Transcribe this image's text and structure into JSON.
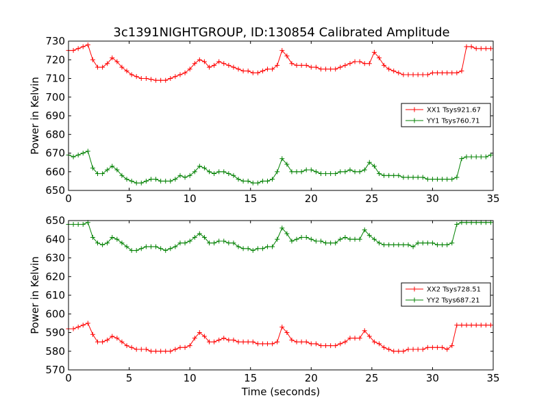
{
  "chart_data": [
    {
      "type": "line",
      "title": "3c1391NIGHTGROUP, ID:130854 Calibrated Amplitude",
      "xlabel": "",
      "ylabel": "Power in Kelvin",
      "xlim": [
        0,
        35
      ],
      "ylim": [
        650,
        730
      ],
      "xticks": [
        0,
        5,
        10,
        15,
        20,
        25,
        30,
        35
      ],
      "yticks": [
        650,
        660,
        670,
        680,
        690,
        700,
        710,
        720,
        730
      ],
      "grid": false,
      "legend_position": "right",
      "x": [
        0.0,
        0.4,
        0.8,
        1.2,
        1.6,
        2.0,
        2.4,
        2.8,
        3.2,
        3.6,
        4.0,
        4.4,
        4.8,
        5.2,
        5.6,
        6.0,
        6.4,
        6.8,
        7.2,
        7.6,
        8.0,
        8.4,
        8.8,
        9.2,
        9.6,
        10.0,
        10.4,
        10.8,
        11.2,
        11.6,
        12.0,
        12.4,
        12.8,
        13.2,
        13.6,
        14.0,
        14.4,
        14.8,
        15.2,
        15.6,
        16.0,
        16.4,
        16.8,
        17.2,
        17.6,
        18.0,
        18.4,
        18.8,
        19.2,
        19.6,
        20.0,
        20.4,
        20.8,
        21.2,
        21.6,
        22.0,
        22.4,
        22.8,
        23.2,
        23.6,
        24.0,
        24.4,
        24.8,
        25.2,
        25.6,
        26.0,
        26.4,
        26.8,
        27.2,
        27.6,
        28.0,
        28.4,
        28.8,
        29.2,
        29.6,
        30.0,
        30.4,
        30.8,
        31.2,
        31.6,
        32.0,
        32.4,
        32.8,
        33.2,
        33.6,
        34.0,
        34.4,
        34.8
      ],
      "series": [
        {
          "name": "XX1 Tsys921.67",
          "color": "#ff0000",
          "values": [
            725,
            725,
            726,
            727,
            728,
            720,
            716,
            716,
            718,
            721,
            719,
            716,
            714,
            712,
            711,
            710,
            710,
            709.5,
            709,
            709,
            709,
            710,
            711,
            712,
            713,
            715,
            718,
            720,
            719,
            716,
            717,
            719,
            718,
            717,
            716,
            715,
            714,
            714,
            713,
            713,
            714,
            715,
            715,
            717,
            725,
            722,
            718,
            717,
            717,
            717,
            716,
            716,
            715,
            715,
            715,
            715,
            716,
            717,
            718,
            719,
            719,
            718,
            718,
            724,
            721,
            717,
            715,
            714,
            713,
            712,
            712,
            712,
            712,
            712,
            712,
            713,
            713,
            713,
            713,
            713,
            713,
            714,
            727,
            727,
            726,
            726,
            726,
            726
          ]
        },
        {
          "name": "YY1 Tsys760.71",
          "color": "#008000",
          "values": [
            669,
            668,
            669,
            670,
            671,
            662,
            659,
            659,
            661,
            663,
            661,
            658,
            656,
            655,
            654,
            654,
            655,
            656,
            656,
            655,
            655,
            655,
            656,
            658,
            657,
            658,
            660,
            663,
            662,
            660,
            659,
            660,
            660,
            659,
            658,
            656,
            655,
            655,
            654,
            654,
            655,
            655,
            656,
            660,
            667,
            664,
            660,
            660,
            660,
            661,
            661,
            660,
            659,
            659,
            659,
            659,
            660,
            660,
            661,
            660,
            660,
            661,
            665,
            663,
            659,
            658,
            658,
            658,
            658,
            657,
            657,
            657,
            657,
            657,
            656,
            656,
            656,
            656,
            656,
            656,
            657,
            667,
            668,
            668,
            668,
            668,
            668,
            669
          ]
        }
      ]
    },
    {
      "type": "line",
      "title": "",
      "xlabel": "Time (seconds)",
      "ylabel": "Power in Kelvin",
      "xlim": [
        0,
        35
      ],
      "ylim": [
        570,
        650
      ],
      "xticks": [
        0,
        5,
        10,
        15,
        20,
        25,
        30,
        35
      ],
      "yticks": [
        570,
        580,
        590,
        600,
        610,
        620,
        630,
        640,
        650
      ],
      "grid": false,
      "legend_position": "right",
      "x": [
        0.0,
        0.4,
        0.8,
        1.2,
        1.6,
        2.0,
        2.4,
        2.8,
        3.2,
        3.6,
        4.0,
        4.4,
        4.8,
        5.2,
        5.6,
        6.0,
        6.4,
        6.8,
        7.2,
        7.6,
        8.0,
        8.4,
        8.8,
        9.2,
        9.6,
        10.0,
        10.4,
        10.8,
        11.2,
        11.6,
        12.0,
        12.4,
        12.8,
        13.2,
        13.6,
        14.0,
        14.4,
        14.8,
        15.2,
        15.6,
        16.0,
        16.4,
        16.8,
        17.2,
        17.6,
        18.0,
        18.4,
        18.8,
        19.2,
        19.6,
        20.0,
        20.4,
        20.8,
        21.2,
        21.6,
        22.0,
        22.4,
        22.8,
        23.2,
        23.6,
        24.0,
        24.4,
        24.8,
        25.2,
        25.6,
        26.0,
        26.4,
        26.8,
        27.2,
        27.6,
        28.0,
        28.4,
        28.8,
        29.2,
        29.6,
        30.0,
        30.4,
        30.8,
        31.2,
        31.6,
        32.0,
        32.4,
        32.8,
        33.2,
        33.6,
        34.0,
        34.4,
        34.8
      ],
      "series": [
        {
          "name": "XX2 Tsys728.51",
          "color": "#ff0000",
          "values": [
            592,
            592,
            593,
            594,
            595,
            589,
            585,
            585,
            586,
            588,
            587,
            585,
            583,
            582,
            581,
            581,
            581,
            580,
            580,
            580,
            580,
            580,
            581,
            582,
            582,
            583,
            587,
            590,
            588,
            585,
            585,
            586,
            587,
            586,
            586,
            585,
            585,
            585,
            585,
            584,
            584,
            584,
            584,
            585,
            593,
            590,
            586,
            585,
            585,
            585,
            584,
            584,
            583,
            583,
            583,
            583,
            584,
            585,
            587,
            587,
            587,
            591,
            588,
            585,
            584,
            582,
            581,
            580,
            580,
            580,
            581,
            581,
            581,
            581,
            582,
            582,
            582,
            582,
            581,
            583,
            594,
            594,
            594,
            594,
            594,
            594,
            594,
            594
          ]
        },
        {
          "name": "YY2 Tsys687.21",
          "color": "#008000",
          "values": [
            648,
            648,
            648,
            648,
            649,
            641,
            638,
            637,
            638,
            641,
            640,
            638,
            636,
            634,
            634,
            635,
            636,
            636,
            636,
            635,
            634,
            635,
            636,
            638,
            638,
            639,
            641,
            643,
            641,
            638,
            638,
            639,
            639,
            638,
            638,
            636,
            635,
            635,
            634,
            635,
            635,
            636,
            636,
            640,
            646,
            643,
            639,
            640,
            641,
            641,
            640,
            639,
            639,
            638,
            638,
            638,
            640,
            641,
            640,
            640,
            640,
            645,
            642,
            640,
            638,
            637,
            637,
            637,
            637,
            637,
            637,
            636,
            638,
            638,
            638,
            638,
            637,
            637,
            637,
            638,
            648,
            649,
            649,
            649,
            649,
            649,
            649,
            649
          ]
        }
      ]
    }
  ]
}
